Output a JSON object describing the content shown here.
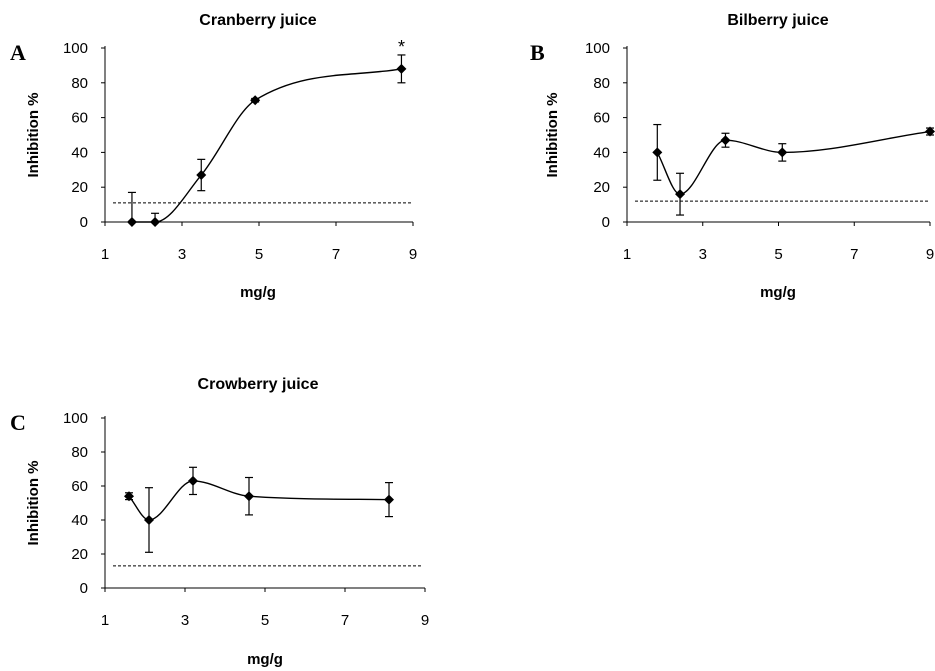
{
  "chart_data": [
    {
      "type": "scatter",
      "panel": "A",
      "title": "Cranberry juice",
      "xlabel": "mg/g",
      "ylabel": "Inhibition %",
      "xlim": [
        1,
        9
      ],
      "ylim": [
        0,
        100
      ],
      "xticks": [
        1,
        3,
        5,
        7,
        9
      ],
      "yticks": [
        0,
        20,
        40,
        60,
        80,
        100
      ],
      "grid": false,
      "series": [
        {
          "x": [
            1.7,
            2.3,
            3.5,
            4.9,
            8.7
          ],
          "y": [
            0,
            0,
            27,
            70,
            88
          ],
          "error": [
            17,
            5,
            9,
            1,
            8
          ],
          "marker": "diamond",
          "line": "smooth"
        }
      ],
      "threshold": 11,
      "annotations": [
        {
          "x": 8.7,
          "y": 96,
          "text": "*"
        }
      ]
    },
    {
      "type": "scatter",
      "panel": "B",
      "title": "Bilberry juice",
      "xlabel": "mg/g",
      "ylabel": "Inhibition %",
      "xlim": [
        1,
        9
      ],
      "ylim": [
        0,
        100
      ],
      "xticks": [
        1,
        3,
        5,
        7,
        9
      ],
      "yticks": [
        0,
        20,
        40,
        60,
        80,
        100
      ],
      "grid": false,
      "series": [
        {
          "x": [
            1.8,
            2.4,
            3.6,
            5.1,
            9.0
          ],
          "y": [
            40,
            16,
            47,
            40,
            52
          ],
          "error": [
            16,
            12,
            4,
            5,
            2
          ],
          "marker": "diamond",
          "line": "smooth"
        }
      ],
      "threshold": 12,
      "annotations": []
    },
    {
      "type": "scatter",
      "panel": "C",
      "title": "Crowberry juice",
      "xlabel": "mg/g",
      "ylabel": "Inhibition %",
      "xlim": [
        1,
        9
      ],
      "ylim": [
        0,
        100
      ],
      "xticks": [
        1,
        3,
        5,
        7,
        9
      ],
      "yticks": [
        0,
        20,
        40,
        60,
        80,
        100
      ],
      "grid": false,
      "series": [
        {
          "x": [
            1.6,
            2.1,
            3.2,
            4.6,
            8.1
          ],
          "y": [
            54,
            40,
            63,
            54,
            52
          ],
          "error": [
            2,
            19,
            8,
            11,
            10
          ],
          "marker": "diamond",
          "line": "smooth"
        }
      ],
      "threshold": 13,
      "annotations": []
    }
  ]
}
